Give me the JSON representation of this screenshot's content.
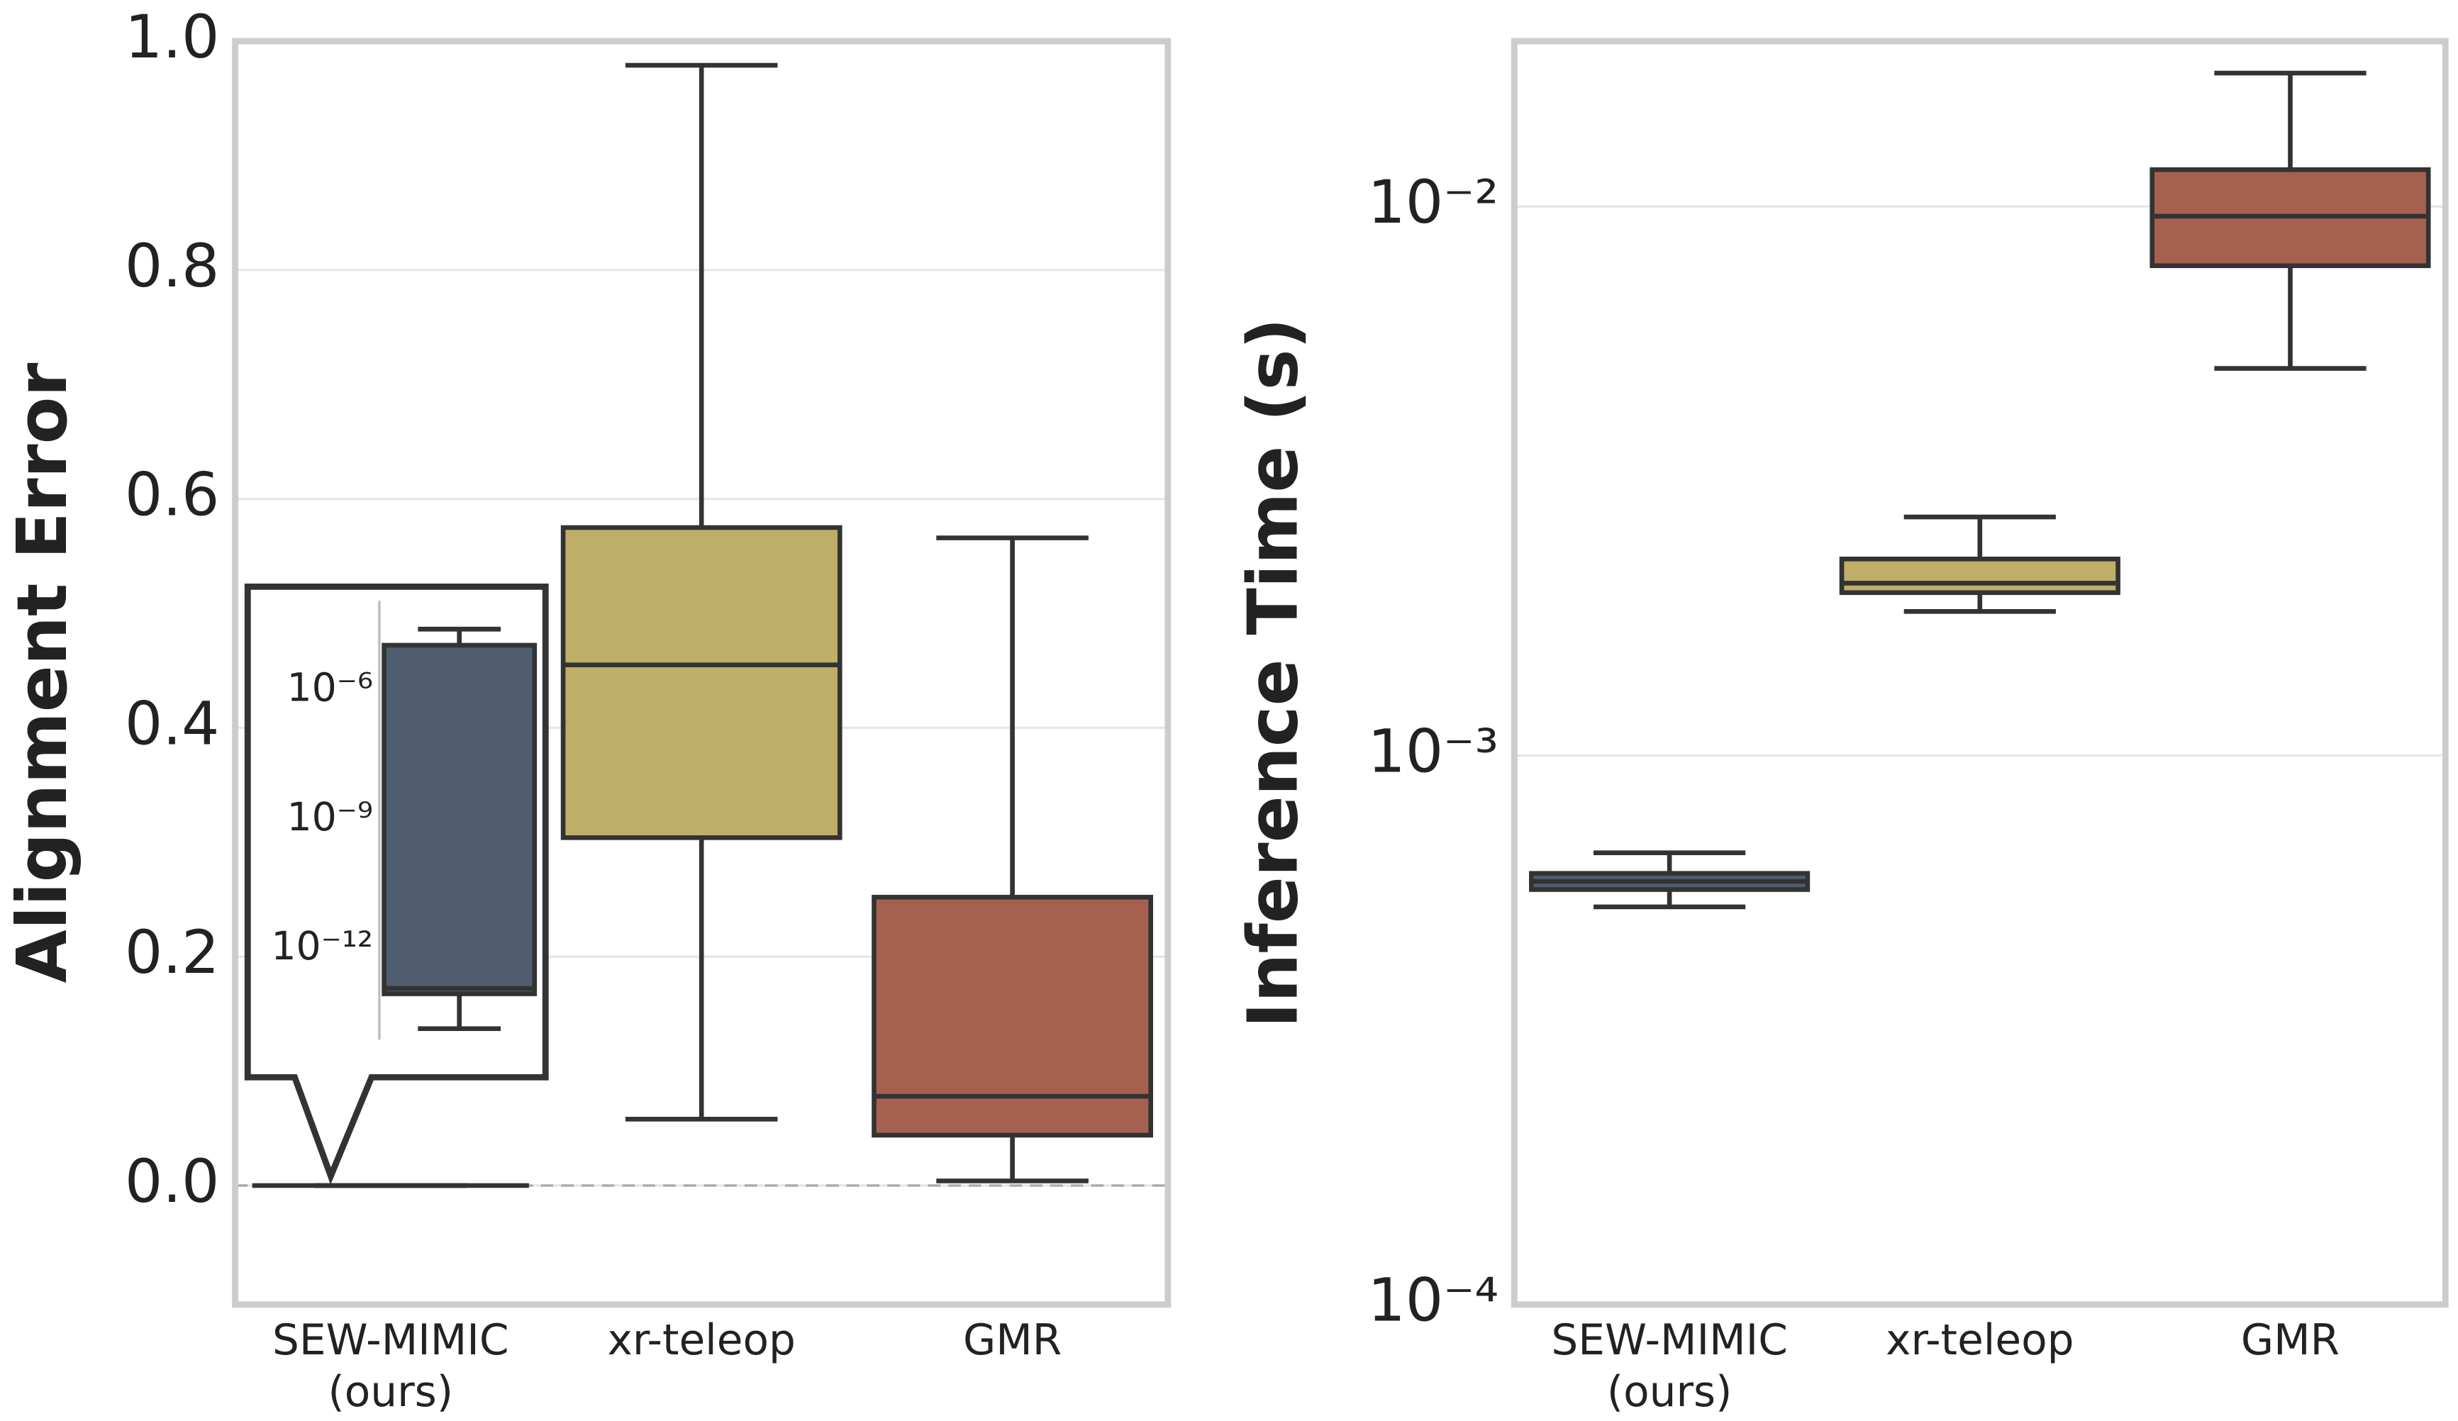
{
  "chart_data": [
    {
      "type": "box",
      "ylabel": "Alignment Error",
      "log_scale": false,
      "grid": true,
      "zero_line": true,
      "categories": [
        [
          "SEW-MIMIC",
          "(ours)"
        ],
        [
          "xr-teleop"
        ],
        [
          "GMR"
        ]
      ],
      "ylim": [
        -0.104,
        1.0
      ],
      "yticks": [
        {
          "value": 0,
          "label": "0.0"
        },
        0.2,
        0.4,
        0.6,
        0.8,
        {
          "value": 1,
          "label": "1.0"
        }
      ],
      "boxes": [
        {
          "color": "#4f5d6e",
          "low": 0,
          "q1": 0,
          "median": 0,
          "q3": 0,
          "high": 0
        },
        {
          "color": "#bfae68",
          "low": 0.058,
          "q1": 0.304,
          "median": 0.455,
          "q3": 0.575,
          "high": 0.979
        },
        {
          "color": "#a6604f",
          "low": 0.004,
          "q1": 0.044,
          "median": 0.078,
          "q3": 0.252,
          "high": 0.566
        }
      ],
      "inset": {
        "type": "box",
        "log_scale": true,
        "ylim": [
          1e-14,
          0.0001
        ],
        "yticks": [
          {
            "value": 1e-06,
            "label": "10⁻⁶"
          },
          {
            "value": 1e-09,
            "label": "10⁻⁹"
          },
          {
            "value": 1e-12,
            "label": "10⁻¹²"
          }
        ],
        "box": {
          "color": "#4f5d6e",
          "low": 1.4e-14,
          "q1": 9e-14,
          "median": 1.2e-13,
          "q3": 1.1e-05,
          "high": 2.6e-05
        }
      }
    },
    {
      "type": "box",
      "ylabel": "Inference Time (s)",
      "log_scale": true,
      "grid": true,
      "categories": [
        [
          "SEW-MIMIC",
          "(ours)"
        ],
        [
          "xr-teleop"
        ],
        [
          "GMR"
        ]
      ],
      "ylim": [
        0.0001,
        0.02
      ],
      "yticks": [
        {
          "value": 0.0001,
          "label": "10⁻⁴"
        },
        {
          "value": 0.001,
          "label": "10⁻³"
        },
        {
          "value": 0.01,
          "label": "10⁻²"
        }
      ],
      "boxes": [
        {
          "color": "#4f5d6e",
          "low": 0.00053,
          "q1": 0.00057,
          "median": 0.00059,
          "q3": 0.00061,
          "high": 0.000665
        },
        {
          "color": "#bfae68",
          "low": 0.00183,
          "q1": 0.00198,
          "median": 0.00206,
          "q3": 0.00228,
          "high": 0.00272
        },
        {
          "color": "#a6604f",
          "low": 0.00507,
          "q1": 0.0078,
          "median": 0.0096,
          "q3": 0.01167,
          "high": 0.0175
        }
      ]
    }
  ]
}
